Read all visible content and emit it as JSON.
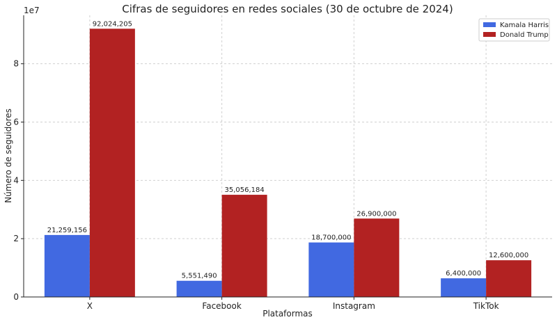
{
  "chart_data": {
    "type": "bar",
    "title": "Cifras de seguidores en redes sociales (30 de octubre de 2024)",
    "xlabel": "Plataformas",
    "ylabel": "Número de seguidores",
    "y_offset_label": "1e7",
    "categories": [
      "X",
      "Facebook",
      "Instagram",
      "TikTok"
    ],
    "series": [
      {
        "name": "Kamala Harris",
        "color": "#4169e1",
        "values": [
          21259156,
          5551490,
          18700000,
          6400000
        ],
        "labels": [
          "21,259,156",
          "5,551,490",
          "18,700,000",
          "6,400,000"
        ]
      },
      {
        "name": "Donald Trump",
        "color": "#b22222",
        "values": [
          92024205,
          35056184,
          26900000,
          12600000
        ],
        "labels": [
          "92,024,205",
          "35,056,184",
          "26,900,000",
          "12,600,000"
        ]
      }
    ],
    "y_ticks": [
      0,
      20000000,
      40000000,
      60000000,
      80000000
    ],
    "y_tick_labels": [
      "0",
      "2",
      "4",
      "6",
      "8"
    ],
    "ylim": [
      0,
      96625415
    ],
    "grid": true,
    "legend_position": "top-right"
  }
}
